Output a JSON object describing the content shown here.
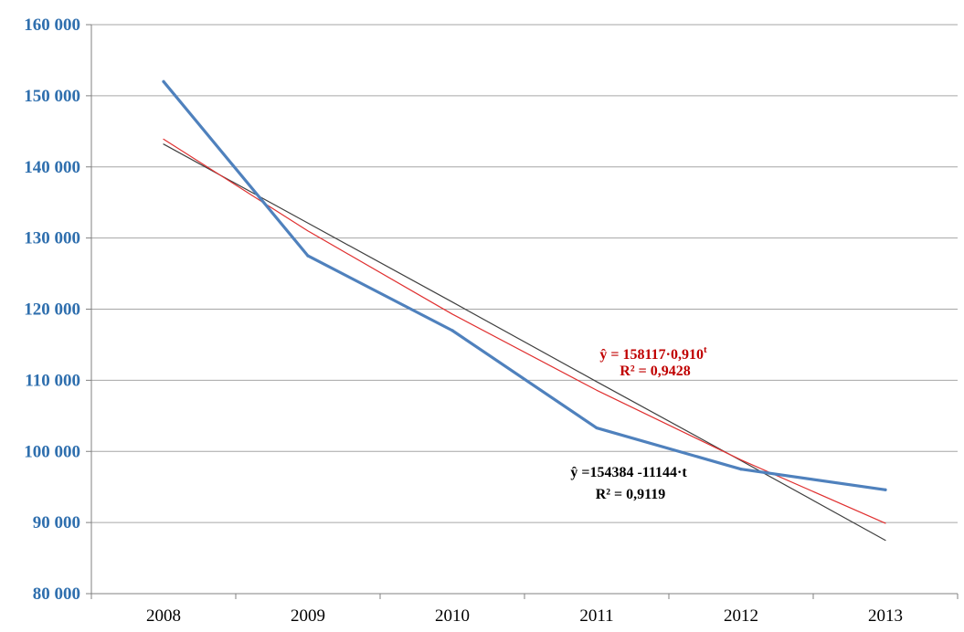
{
  "chart_data": {
    "type": "line",
    "title": "",
    "xlabel": "",
    "ylabel": "",
    "categories": [
      "2008",
      "2009",
      "2010",
      "2011",
      "2012",
      "2013"
    ],
    "y_tick_labels": [
      "80 000",
      "90 000",
      "100 000",
      "110 000",
      "120 000",
      "130 000",
      "140 000",
      "150 000",
      "160 000"
    ],
    "y_ticks": [
      80000,
      90000,
      100000,
      110000,
      120000,
      130000,
      140000,
      150000,
      160000
    ],
    "ylim": [
      80000,
      160000
    ],
    "grid": true,
    "legend": "none",
    "series": [
      {
        "values": [
          152000,
          127500,
          117000,
          103300,
          97500,
          94600
        ],
        "color": "#4f81bd"
      },
      {
        "values": [
          143900,
          131000,
          119300,
          108600,
          98800,
          89900
        ],
        "color": "#e03030"
      },
      {
        "values": [
          143200,
          132100,
          121000,
          109800,
          98700,
          87500
        ],
        "color": "#404040"
      }
    ],
    "annotations": [
      {
        "line1": "ŷ = 158117·0,910",
        "sup": "t",
        "line2": "R² = 0,9428",
        "color": "#c00000"
      },
      {
        "line1": "ŷ =154384 -11144·t",
        "sup": "",
        "line2": "R² = 0,9119",
        "color": "#000000"
      }
    ],
    "colors": {
      "ytick": "#2f6fae",
      "xtick": "#000000",
      "grid": "#a6a6a6",
      "axis": "#808080"
    }
  }
}
